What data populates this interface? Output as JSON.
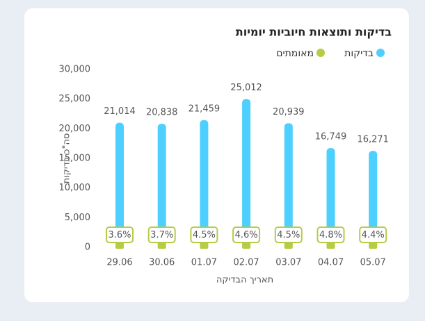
{
  "chart_data": {
    "type": "bar",
    "title": "בדיקות ותוצאות חיוביות יומיות",
    "x_label": "תאריך הבדיקה",
    "y_label": "סה\"כ בדיקות",
    "categories": [
      "29.06",
      "30.06",
      "01.07",
      "02.07",
      "03.07",
      "04.07",
      "05.07"
    ],
    "series": [
      {
        "name": "בדיקות",
        "color": "#4dcfff",
        "values": [
          21014,
          20838,
          21459,
          25012,
          20939,
          16749,
          16271
        ],
        "value_labels": [
          "21,014",
          "20,838",
          "21,459",
          "25,012",
          "20,939",
          "16,749",
          "16,271"
        ]
      },
      {
        "name": "מאומתים",
        "color": "#b5cc45",
        "values": [
          756,
          771,
          966,
          1151,
          942,
          804,
          716
        ],
        "rate_labels": [
          "3.6%",
          "3.7%",
          "4.5%",
          "4.6%",
          "4.5%",
          "4.8%",
          "4.4%"
        ]
      }
    ],
    "ylim": [
      0,
      30000
    ],
    "yticks": [
      0,
      {
        "value": 5000,
        "label": "5,000"
      },
      {
        "value": 10000,
        "label": "10,000"
      },
      {
        "value": 15000,
        "label": "15,000"
      },
      {
        "value": 20000,
        "label": "20,000"
      },
      {
        "value": 25000,
        "label": "25,000"
      },
      {
        "value": 30000,
        "label": "30,000"
      }
    ],
    "grid": false
  }
}
